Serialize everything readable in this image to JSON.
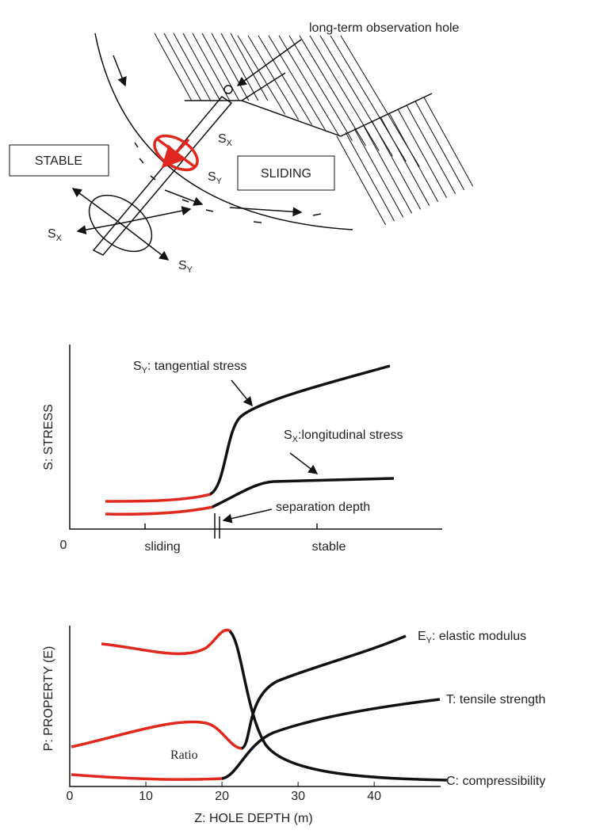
{
  "top_diagram": {
    "observation_hole_label": "long-term observation hole",
    "stable_label": "STABLE",
    "sliding_label": "SLIDING",
    "stress_labels": [
      {
        "symbol": "S",
        "sub": "X"
      },
      {
        "symbol": "S",
        "sub": "Y"
      },
      {
        "symbol": "S",
        "sub": "X"
      },
      {
        "symbol": "S",
        "sub": "Y"
      }
    ]
  },
  "stress_chart": {
    "y_axis_label": "S: STRESS",
    "origin_label": "0",
    "x_labels": [
      "sliding",
      "stable"
    ],
    "tangential": {
      "symbol": "S",
      "sub": "Y",
      "text": ": tangential stress"
    },
    "longitudinal": {
      "symbol": "S",
      "sub": "X",
      "text": ":longitudinal stress"
    },
    "separation_label": "separation depth"
  },
  "property_chart": {
    "y_axis_label": "P: PROPERTY (E)",
    "x_axis_label": "Z: HOLE DEPTH (m)",
    "xlim": [
      0,
      48
    ],
    "xticks": [
      0,
      10,
      20,
      30,
      40
    ],
    "ratio_label": "Ratio",
    "elastic": {
      "symbol": "E",
      "sub": "Y",
      "text": ": elastic modulus"
    },
    "tensile_label": "T: tensile strength",
    "compress_label": "C: compressibility"
  }
}
